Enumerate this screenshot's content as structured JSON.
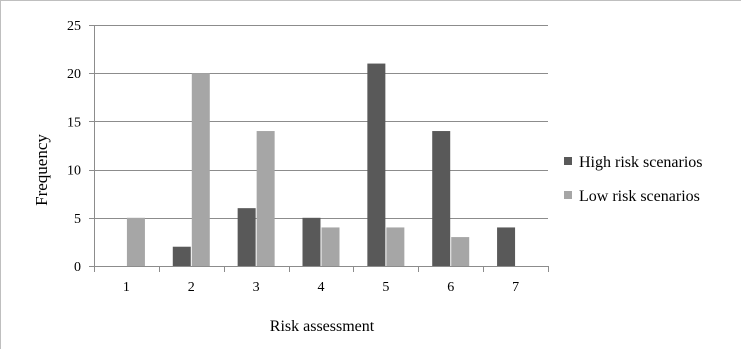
{
  "chart_data": {
    "type": "bar",
    "title": "",
    "xlabel": "Risk assessment",
    "ylabel": "Frequency",
    "categories": [
      "1",
      "2",
      "3",
      "4",
      "5",
      "6",
      "7"
    ],
    "yticks": [
      "0",
      "5",
      "10",
      "15",
      "20",
      "25"
    ],
    "ylim": [
      0,
      25
    ],
    "grid": true,
    "legend_position": "right",
    "series": [
      {
        "name": "High risk scenarios",
        "color": "#595959",
        "values": [
          0,
          2,
          6,
          5,
          21,
          14,
          4
        ]
      },
      {
        "name": "Low risk scenarios",
        "color": "#a6a6a6",
        "values": [
          5,
          20,
          14,
          4,
          4,
          3,
          0
        ]
      }
    ]
  }
}
